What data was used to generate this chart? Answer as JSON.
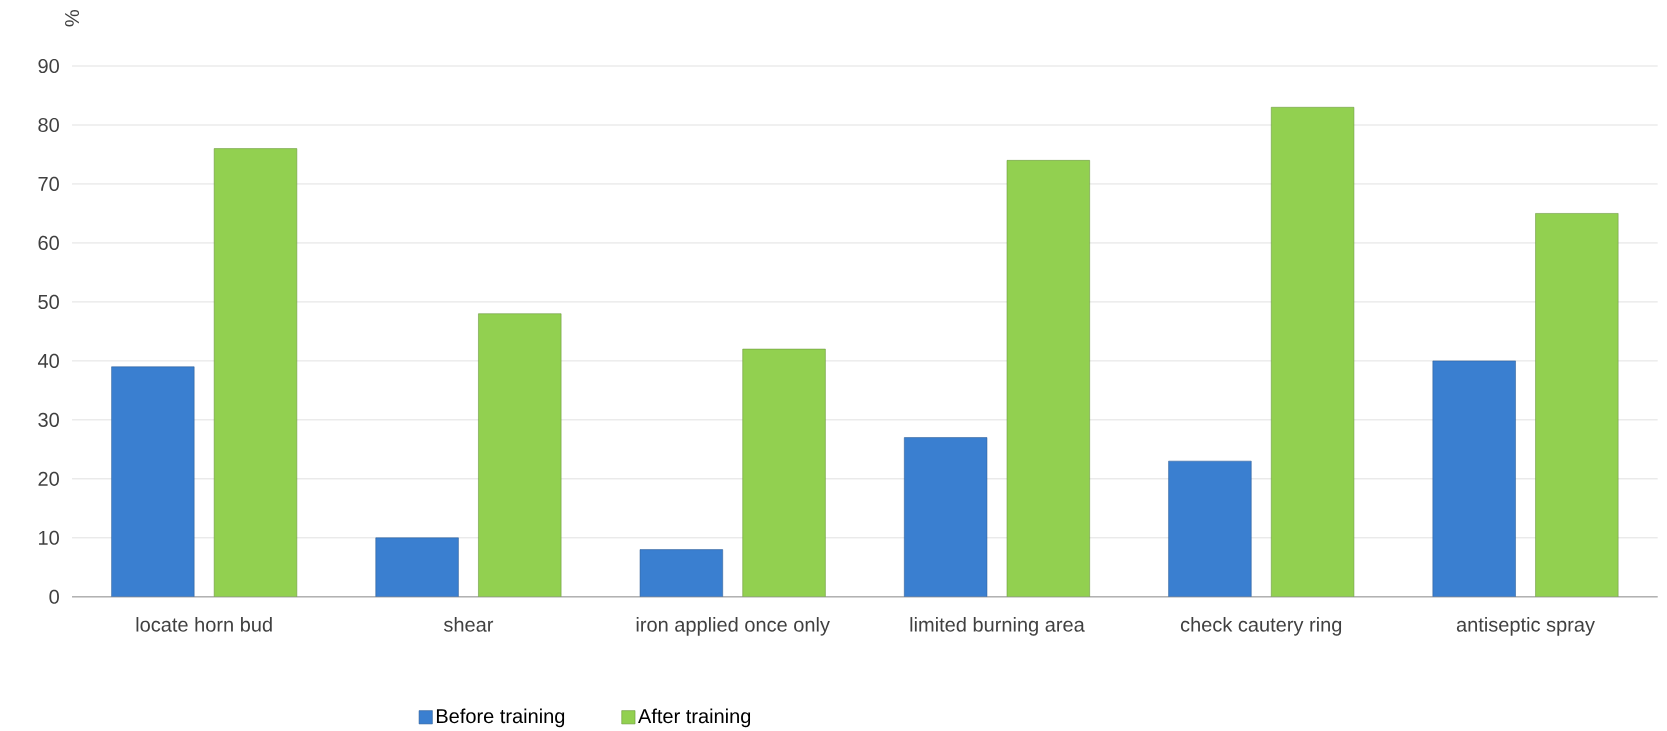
{
  "chart_data": {
    "type": "bar",
    "ylabel": "%",
    "categories": [
      "locate horn bud",
      "shear",
      "iron applied once only",
      "limited burning area",
      "check cautery ring",
      "antiseptic spray"
    ],
    "series": [
      {
        "name": "Before training",
        "color": "#3a7fd0",
        "values": [
          39,
          10,
          8,
          27,
          23,
          40
        ]
      },
      {
        "name": "After training",
        "color": "#92d050",
        "values": [
          76,
          48,
          42,
          74,
          83,
          65
        ]
      }
    ],
    "ylim": [
      0,
      90
    ],
    "yticks": [
      0,
      10,
      20,
      30,
      40,
      50,
      60,
      70,
      80,
      90
    ],
    "grid": "y",
    "legend": "bottom"
  }
}
